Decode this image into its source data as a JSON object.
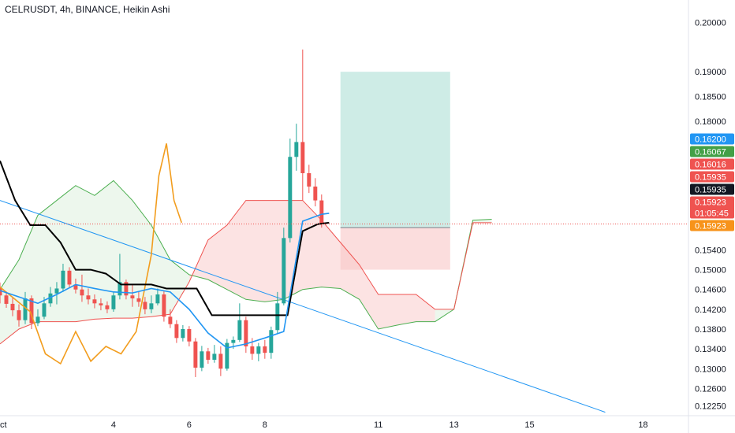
{
  "header": {
    "title": "CELRUSDT, 4h, BINANCE, Heikin Ashi"
  },
  "chart_data": {
    "type": "candlestick",
    "title": "CELRUSDT, 4h, BINANCE, Heikin Ashi",
    "symbol": "CELRUSDT",
    "interval": "4h",
    "exchange": "BINANCE",
    "candle_style": "Heikin Ashi",
    "ylim": [
      0.1205,
      0.2045
    ],
    "x_range_days": [
      1,
      19.2
    ],
    "y_ticks": [
      "0.20000",
      "0.19000",
      "0.18500",
      "0.18000",
      "0.15400",
      "0.15000",
      "0.14600",
      "0.14200",
      "0.13800",
      "0.13400",
      "0.13000",
      "0.12600",
      "0.12250"
    ],
    "x_ticks": [
      {
        "label": "Oct",
        "day": 1
      },
      {
        "label": "4",
        "day": 4
      },
      {
        "label": "6",
        "day": 6
      },
      {
        "label": "8",
        "day": 8
      },
      {
        "label": "11",
        "day": 11
      },
      {
        "label": "13",
        "day": 13
      },
      {
        "label": "15",
        "day": 15
      },
      {
        "label": "18",
        "day": 18
      }
    ],
    "price_badges": [
      {
        "value": "0.16200",
        "color": "#2196f3"
      },
      {
        "value": "0.16067",
        "color": "#43a047"
      },
      {
        "value": "0.16016",
        "color": "#ef5350"
      },
      {
        "value": "0.15935",
        "color": "#ef5350"
      },
      {
        "value": "0.15935",
        "color": "#131722"
      },
      {
        "value": "0.15923",
        "color": "#ef5350",
        "countdown": "01:05:45"
      },
      {
        "value": "0.15923",
        "color": "#f7931a"
      }
    ],
    "last_price": 0.15923,
    "candles": {
      "start_day": 1.0,
      "step_days": 0.1667,
      "ohlc": [
        [
          0.1463,
          0.1474,
          0.1432,
          0.1448
        ],
        [
          0.1448,
          0.1456,
          0.1423,
          0.1431
        ],
        [
          0.1431,
          0.1443,
          0.1406,
          0.1418
        ],
        [
          0.1418,
          0.143,
          0.1385,
          0.1398
        ],
        [
          0.1398,
          0.1455,
          0.139,
          0.1442
        ],
        [
          0.1442,
          0.1448,
          0.138,
          0.1392
        ],
        [
          0.1392,
          0.142,
          0.1386,
          0.1405
        ],
        [
          0.1405,
          0.1445,
          0.14,
          0.1432
        ],
        [
          0.1432,
          0.1465,
          0.1425,
          0.1452
        ],
        [
          0.1452,
          0.1475,
          0.143,
          0.1462
        ],
        [
          0.1462,
          0.1512,
          0.1455,
          0.1498
        ],
        [
          0.1498,
          0.1505,
          0.1465,
          0.147
        ],
        [
          0.147,
          0.1482,
          0.1452,
          0.146
        ],
        [
          0.146,
          0.149,
          0.1435,
          0.1448
        ],
        [
          0.1448,
          0.1462,
          0.143,
          0.144
        ],
        [
          0.144,
          0.145,
          0.1422,
          0.1432
        ],
        [
          0.1432,
          0.1442,
          0.1418,
          0.1428
        ],
        [
          0.1428,
          0.1436,
          0.1412,
          0.142
        ],
        [
          0.142,
          0.1455,
          0.1415,
          0.1448
        ],
        [
          0.1448,
          0.1532,
          0.144,
          0.1475
        ],
        [
          0.1475,
          0.148,
          0.144,
          0.1448
        ],
        [
          0.1448,
          0.147,
          0.1425,
          0.1442
        ],
        [
          0.1442,
          0.1456,
          0.1425,
          0.1435
        ],
        [
          0.1435,
          0.1445,
          0.141,
          0.142
        ],
        [
          0.142,
          0.1448,
          0.1412,
          0.1432
        ],
        [
          0.1432,
          0.1462,
          0.1428,
          0.145
        ],
        [
          0.145,
          0.1458,
          0.1395,
          0.1405
        ],
        [
          0.1405,
          0.142,
          0.1382,
          0.139
        ],
        [
          0.139,
          0.1398,
          0.1352,
          0.1362
        ],
        [
          0.1362,
          0.1388,
          0.1355,
          0.138
        ],
        [
          0.138,
          0.1386,
          0.1345,
          0.1355
        ],
        [
          0.1355,
          0.1362,
          0.1283,
          0.1302
        ],
        [
          0.1302,
          0.1346,
          0.1295,
          0.1335
        ],
        [
          0.1335,
          0.1342,
          0.131,
          0.1318
        ],
        [
          0.1318,
          0.1348,
          0.1312,
          0.133
        ],
        [
          0.133,
          0.1345,
          0.1285,
          0.13
        ],
        [
          0.13,
          0.136,
          0.1296,
          0.1352
        ],
        [
          0.1352,
          0.1365,
          0.134,
          0.1358
        ],
        [
          0.1358,
          0.1432,
          0.1354,
          0.1398
        ],
        [
          0.1398,
          0.1405,
          0.1332,
          0.1345
        ],
        [
          0.1345,
          0.1362,
          0.1318,
          0.133
        ],
        [
          0.133,
          0.1352,
          0.1315,
          0.1345
        ],
        [
          0.1345,
          0.1358,
          0.132,
          0.1332
        ],
        [
          0.1332,
          0.1385,
          0.132,
          0.1378
        ],
        [
          0.1378,
          0.1455,
          0.137,
          0.1432
        ],
        [
          0.1432,
          0.1585,
          0.1428,
          0.1564
        ],
        [
          0.1564,
          0.1765,
          0.1555,
          0.1728
        ],
        [
          0.1728,
          0.1795,
          0.17,
          0.1758
        ],
        [
          0.1758,
          0.1945,
          0.164,
          0.1695
        ],
        [
          0.1695,
          0.1712,
          0.1655,
          0.1668
        ],
        [
          0.1668,
          0.1685,
          0.1628,
          0.164
        ],
        [
          0.164,
          0.1652,
          0.1585,
          0.1592
        ]
      ]
    },
    "overlays": {
      "conversion_line": {
        "color": "#2196f3",
        "x": [
          1.0,
          1.5,
          2.0,
          2.5,
          3.0,
          3.5,
          4.0,
          4.5,
          5.0,
          5.5,
          6.0,
          6.5,
          7.0,
          7.5,
          8.0,
          8.5,
          9.0,
          9.5,
          9.7
        ],
        "y": [
          0.1458,
          0.1445,
          0.1432,
          0.145,
          0.147,
          0.1462,
          0.1455,
          0.1453,
          0.1462,
          0.1455,
          0.142,
          0.1372,
          0.1342,
          0.135,
          0.1362,
          0.1375,
          0.1598,
          0.1612,
          0.1614
        ]
      },
      "base_line": {
        "color": "#000000",
        "x": [
          1.0,
          1.4,
          1.8,
          2.2,
          2.6,
          3.0,
          3.4,
          3.8,
          4.2,
          4.6,
          5.0,
          5.4,
          5.8,
          6.2,
          6.6,
          7.0,
          7.4,
          7.8,
          8.2,
          8.6,
          9.0,
          9.4,
          9.7
        ],
        "y": [
          0.172,
          0.164,
          0.159,
          0.159,
          0.1555,
          0.15,
          0.15,
          0.1492,
          0.147,
          0.147,
          0.147,
          0.1462,
          0.1462,
          0.1462,
          0.1408,
          0.1408,
          0.1408,
          0.1408,
          0.1408,
          0.1408,
          0.1578,
          0.1592,
          0.1595
        ]
      },
      "lagging_span": {
        "color": "#f29d1e",
        "x": [
          1.0,
          1.4,
          1.8,
          2.2,
          2.6,
          3.0,
          3.4,
          3.8,
          4.2,
          4.6,
          5.0,
          5.2,
          5.4,
          5.6,
          5.8
        ],
        "y": [
          0.1465,
          0.144,
          0.1415,
          0.133,
          0.131,
          0.1375,
          0.1315,
          0.1345,
          0.133,
          0.1375,
          0.153,
          0.169,
          0.1755,
          0.164,
          0.1595
        ]
      },
      "cloud_span_a": {
        "color": "#4caf50",
        "x": [
          1.0,
          1.5,
          2.0,
          2.5,
          3.0,
          3.5,
          4.0,
          4.5,
          5.0,
          5.5,
          6.0,
          6.5,
          7.0,
          7.5,
          8.0,
          8.5,
          9.0,
          9.5,
          10.0,
          10.5,
          11.0,
          11.5,
          12.0,
          12.5,
          13.0,
          13.5,
          14.0
        ],
        "y": [
          0.146,
          0.152,
          0.161,
          0.164,
          0.167,
          0.165,
          0.168,
          0.164,
          0.159,
          0.152,
          0.149,
          0.148,
          0.146,
          0.144,
          0.1435,
          0.144,
          0.146,
          0.1465,
          0.1462,
          0.144,
          0.138,
          0.1388,
          0.1395,
          0.1395,
          0.142,
          0.16,
          0.1602
        ]
      },
      "cloud_span_b": {
        "color": "#ef5350",
        "x": [
          1.0,
          1.5,
          2.0,
          2.5,
          3.0,
          3.5,
          4.0,
          4.5,
          5.0,
          5.5,
          6.0,
          6.5,
          7.0,
          7.5,
          8.0,
          8.5,
          9.0,
          9.5,
          10.0,
          10.5,
          11.0,
          11.5,
          12.0,
          12.5,
          13.0,
          13.5,
          14.0
        ],
        "y": [
          0.135,
          0.138,
          0.1395,
          0.1395,
          0.1395,
          0.14,
          0.1402,
          0.1402,
          0.1405,
          0.141,
          0.1475,
          0.156,
          0.159,
          0.164,
          0.164,
          0.164,
          0.164,
          0.16,
          0.1555,
          0.151,
          0.145,
          0.145,
          0.145,
          0.142,
          0.142,
          0.1595,
          0.1595
        ]
      },
      "trendline": {
        "color": "#2196f3",
        "x": [
          1.0,
          17.0
        ],
        "y": [
          0.164,
          0.1212
        ]
      },
      "price_line": {
        "color": "#ef5350",
        "value": 0.15923
      }
    },
    "position": {
      "type": "long",
      "start_day": 10.0,
      "end_day": 12.9,
      "entry": 0.1585,
      "target": 0.19,
      "stop": 0.15,
      "target_color": "#a6dcd2",
      "stop_color": "#f8c6c6"
    }
  }
}
